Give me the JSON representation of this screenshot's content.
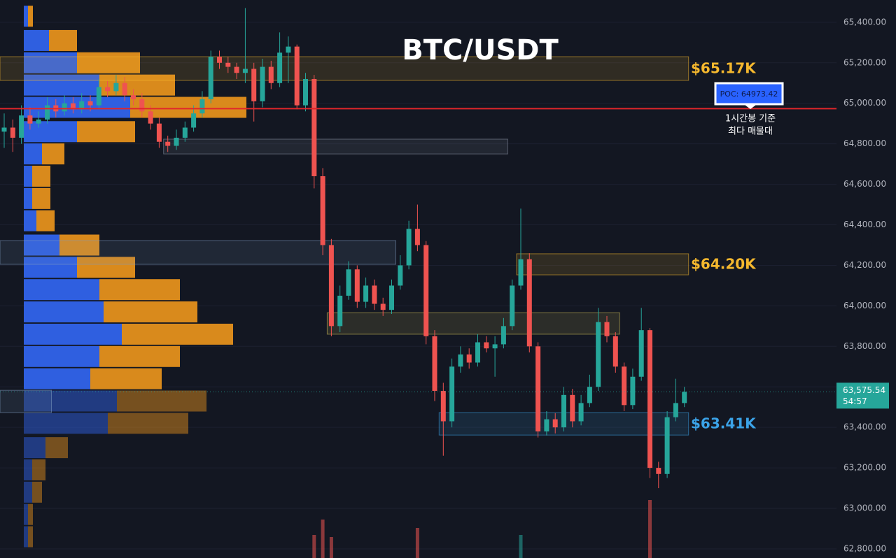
{
  "chart_data": {
    "type": "candlestick",
    "title": "BTC/USDT",
    "open": [
      64860,
      64880,
      64830,
      64940,
      64900,
      64920,
      64990,
      64960,
      65000,
      64970,
      65010,
      64990,
      65080,
      65060,
      65100,
      65040,
      65020,
      64960,
      64900,
      64810,
      64790,
      64830,
      64880,
      64950,
      65020,
      65230,
      65200,
      65180,
      65150,
      65170,
      65010,
      65180,
      65100,
      65250,
      65280,
      64990,
      65120,
      64640,
      64300,
      63900,
      64050,
      64180,
      64020,
      64100,
      64010,
      63980,
      64100,
      64200,
      64380,
      64300,
      63850,
      63580,
      63430,
      63700,
      63760,
      63720,
      63820,
      63790,
      63810,
      63900,
      64100,
      64230,
      63800,
      63380,
      63440,
      63400,
      63560,
      63430,
      63520,
      63600,
      63920,
      63850,
      63700,
      63510,
      63650,
      63880,
      63200,
      63170,
      63450,
      63520
    ],
    "high": [
      64950,
      64920,
      64990,
      64980,
      64960,
      65030,
      65020,
      65040,
      65030,
      65050,
      65040,
      65120,
      65110,
      65140,
      65130,
      65070,
      65050,
      64990,
      64930,
      64840,
      64870,
      64910,
      64990,
      65060,
      65260,
      65260,
      65230,
      65200,
      65470,
      65200,
      65220,
      65210,
      65350,
      65330,
      65290,
      65150,
      65140,
      64680,
      64330,
      64100,
      64220,
      64200,
      64140,
      64130,
      64040,
      64130,
      64250,
      64420,
      64500,
      64320,
      63880,
      63620,
      63740,
      63800,
      63790,
      63860,
      63850,
      63850,
      63940,
      64130,
      64480,
      64260,
      63820,
      63480,
      63470,
      63600,
      63590,
      63560,
      63660,
      63990,
      63950,
      63870,
      63720,
      63690,
      63990,
      63890,
      63230,
      63480,
      63640,
      63600
    ],
    "low": [
      64780,
      64760,
      64800,
      64870,
      64880,
      64900,
      64930,
      64940,
      64950,
      64950,
      64960,
      64970,
      65030,
      65040,
      65010,
      64990,
      64930,
      64870,
      64780,
      64760,
      64770,
      64810,
      64860,
      64930,
      65000,
      65170,
      65150,
      65120,
      65100,
      64910,
      64980,
      65070,
      65080,
      65100,
      64970,
      64960,
      64580,
      64250,
      63850,
      63870,
      64030,
      63990,
      63990,
      63980,
      63950,
      63960,
      64080,
      64180,
      64270,
      63810,
      63530,
      63260,
      63400,
      63670,
      63690,
      63700,
      63770,
      63650,
      63790,
      63880,
      64080,
      63770,
      63350,
      63360,
      63370,
      63380,
      63400,
      63410,
      63500,
      63580,
      63820,
      63670,
      63480,
      63490,
      63630,
      63150,
      63100,
      63150,
      63430,
      63500
    ],
    "close": [
      64880,
      64830,
      64940,
      64900,
      64920,
      64990,
      64960,
      65000,
      64970,
      65010,
      64990,
      65080,
      65060,
      65100,
      65040,
      65020,
      64960,
      64900,
      64810,
      64790,
      64830,
      64880,
      64950,
      65020,
      65230,
      65200,
      65180,
      65150,
      65170,
      65010,
      65180,
      65100,
      65250,
      65280,
      64990,
      65120,
      64640,
      64300,
      63900,
      64050,
      64180,
      64020,
      64100,
      64010,
      63980,
      64100,
      64200,
      64380,
      64300,
      63850,
      63580,
      63430,
      63700,
      63760,
      63720,
      63820,
      63790,
      63810,
      63900,
      64100,
      64230,
      63800,
      63380,
      63440,
      63400,
      63560,
      63430,
      63520,
      63600,
      63920,
      63850,
      63700,
      63510,
      63650,
      63880,
      63200,
      63170,
      63450,
      63520,
      63575.54
    ],
    "volume": [
      0,
      0,
      0,
      0,
      0,
      0,
      0,
      0,
      0,
      0,
      0,
      0,
      0,
      0,
      0,
      0,
      0,
      0,
      0,
      0,
      0,
      0,
      0,
      0,
      0,
      0,
      0,
      0,
      0,
      0,
      0,
      0,
      0,
      0,
      0,
      0,
      33,
      55,
      30,
      0,
      0,
      0,
      0,
      0,
      0,
      0,
      0,
      0,
      43,
      0,
      0,
      0,
      0,
      0,
      0,
      0,
      0,
      0,
      0,
      0,
      33,
      0,
      0,
      0,
      0,
      0,
      0,
      0,
      0,
      0,
      0,
      0,
      0,
      0,
      0,
      83,
      0,
      0,
      0,
      0
    ],
    "up_color": "#26a69a",
    "down_color": "#ef5350",
    "last_price_label": "63,575.54",
    "countdown": "54:57",
    "ylim": [
      62755,
      65510
    ],
    "yticks": [
      {
        "value": 62800,
        "label": "62,800.00"
      },
      {
        "value": 63000,
        "label": "63,000.00"
      },
      {
        "value": 63200,
        "label": "63,200.00"
      },
      {
        "value": 63400,
        "label": "63,400.00"
      },
      {
        "value": 63600,
        "label": "63,600.00"
      },
      {
        "value": 63800,
        "label": "63,800.00"
      },
      {
        "value": 64000,
        "label": "64,000.00"
      },
      {
        "value": 64200,
        "label": "64,200.00"
      },
      {
        "value": 64400,
        "label": "64,400.00"
      },
      {
        "value": 64600,
        "label": "64,600.00"
      },
      {
        "value": 64800,
        "label": "64,800.00"
      },
      {
        "value": 65000,
        "label": "65,000.00"
      },
      {
        "value": 65200,
        "label": "65,200.00"
      },
      {
        "value": 65400,
        "label": "65,400.00"
      }
    ],
    "grid": true,
    "profile": {
      "levels": [
        65430,
        65310,
        65200,
        65090,
        64980,
        64860,
        64750,
        64640,
        64530,
        64420,
        64300,
        64190,
        64080,
        63970,
        63860,
        63750,
        63640,
        63530,
        63420,
        63300,
        63190,
        63080,
        62970,
        62860
      ],
      "buy": [
        6,
        36,
        76,
        108,
        152,
        76,
        26,
        12,
        12,
        18,
        51,
        76,
        108,
        114,
        140,
        108,
        95,
        133,
        120,
        31,
        12,
        12,
        6,
        6
      ],
      "sell": [
        7,
        40,
        90,
        108,
        166,
        83,
        32,
        26,
        26,
        26,
        57,
        83,
        115,
        134,
        159,
        115,
        102,
        128,
        115,
        32,
        19,
        14,
        7,
        7
      ],
      "buy_color": "#2f5fe0",
      "sell_color": "#d98a1c"
    },
    "zones": [
      {
        "top": 65230,
        "bottom": 65113,
        "start": 0,
        "end": 79,
        "color": "#f5b82e",
        "label": "$65.17K"
      },
      {
        "top": 64823,
        "bottom": 64750,
        "start": 19,
        "end": 58,
        "color": "#8a93a6"
      },
      {
        "top": 64322,
        "bottom": 64205,
        "start": 0,
        "end": 45,
        "color": "#7f9bbf"
      },
      {
        "top": 64257,
        "bottom": 64153,
        "start": 60,
        "end": 79,
        "color": "#f5b82e",
        "label": "$64.20K"
      },
      {
        "top": 63966,
        "bottom": 63860,
        "start": 38,
        "end": 71,
        "color": "#d6c25a"
      },
      {
        "top": 63473,
        "bottom": 63362,
        "start": 51,
        "end": 79,
        "color": "#3ba3e8",
        "label": "$63.41K"
      },
      {
        "top": 63583,
        "bottom": 63473,
        "start": 0,
        "end": 5,
        "color": "#7f9bbf"
      }
    ],
    "poc": {
      "price": 64973.42,
      "label": "POC: 64973.42",
      "color": "#e0262b",
      "note": [
        "1시간봉 기준",
        "최다 매물대"
      ]
    }
  }
}
